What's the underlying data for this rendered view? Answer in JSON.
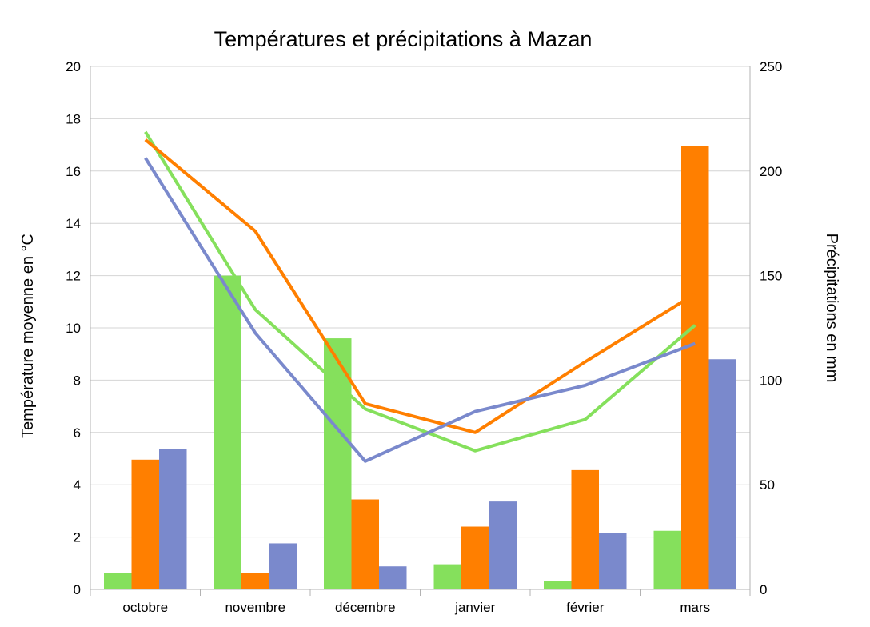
{
  "chart_data": {
    "type": "bar",
    "title": "Températures et précipitations à Mazan",
    "categories": [
      "octobre",
      "novembre",
      "décembre",
      "janvier",
      "février",
      "mars"
    ],
    "ylabel": "Température moyenne en °C",
    "y2label": "Précipitations en mm",
    "ylim": [
      0,
      20
    ],
    "y2lim": [
      0,
      250
    ],
    "yticks": [
      "0",
      "2",
      "4",
      "6",
      "8",
      "10",
      "12",
      "14",
      "16",
      "18",
      "20"
    ],
    "y2ticks": [
      "0",
      "50",
      "100",
      "150",
      "200",
      "250"
    ],
    "grid": true,
    "legend": "none",
    "bar_series": [
      {
        "color": "#85e05c",
        "axis": "y2",
        "values": [
          8,
          150,
          120,
          12,
          4,
          28
        ]
      },
      {
        "color": "#ff7f00",
        "axis": "y2",
        "values": [
          62,
          8,
          43,
          30,
          57,
          212
        ]
      },
      {
        "color": "#7a89cc",
        "axis": "y2",
        "values": [
          67,
          22,
          11,
          42,
          27,
          110
        ]
      }
    ],
    "line_series": [
      {
        "color": "#85e05c",
        "axis": "y",
        "values": [
          17.5,
          10.7,
          6.9,
          5.3,
          6.5,
          10.1
        ]
      },
      {
        "color": "#ff7f00",
        "axis": "y",
        "values": [
          17.2,
          13.7,
          7.1,
          6.0,
          8.7,
          11.3
        ]
      },
      {
        "color": "#7a89cc",
        "axis": "y",
        "values": [
          16.5,
          9.8,
          4.9,
          6.8,
          7.8,
          9.4
        ]
      }
    ]
  }
}
